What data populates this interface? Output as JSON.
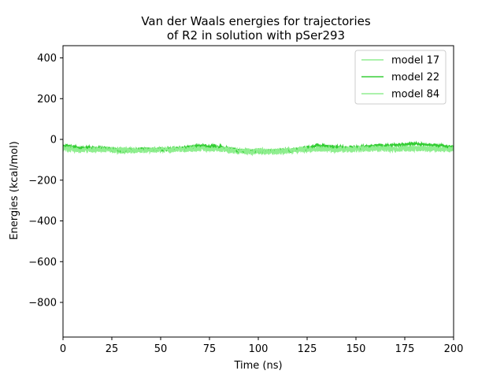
{
  "chart_data": {
    "type": "line",
    "title": [
      "Van der Waals energies for trajectories",
      "of R2 in solution with pSer293"
    ],
    "xlabel": "Time (ns)",
    "ylabel": "Energies (kcal/mol)",
    "xlim": [
      0,
      200
    ],
    "ylim": [
      -970,
      460
    ],
    "xticks": [
      0,
      25,
      50,
      75,
      100,
      125,
      150,
      175,
      200
    ],
    "xtick_labels": [
      "0",
      "25",
      "50",
      "75",
      "100",
      "125",
      "150",
      "175",
      "200"
    ],
    "yticks": [
      400,
      200,
      0,
      -200,
      -400,
      -600,
      -800
    ],
    "ytick_labels": [
      "400",
      "200",
      "0",
      "−200",
      "−400",
      "−600",
      "−800"
    ],
    "grid": false,
    "legend_position": "top-right",
    "series": [
      {
        "name": "model 17",
        "color": "#90ee90",
        "x": [
          0,
          10,
          20,
          30,
          40,
          50,
          60,
          70,
          80,
          90,
          100,
          110,
          120,
          130,
          140,
          150,
          160,
          170,
          180,
          190,
          200
        ],
        "y": [
          -38,
          -52,
          -50,
          -57,
          -52,
          -54,
          -50,
          -44,
          -46,
          -60,
          -62,
          -62,
          -52,
          -48,
          -50,
          -50,
          -46,
          -48,
          -45,
          -47,
          -49
        ]
      },
      {
        "name": "model 22",
        "color": "#32cd32",
        "x": [
          0,
          10,
          20,
          30,
          40,
          50,
          60,
          70,
          80,
          90,
          100,
          110,
          120,
          130,
          140,
          150,
          160,
          170,
          180,
          190,
          200
        ],
        "y": [
          -30,
          -42,
          -40,
          -55,
          -48,
          -50,
          -45,
          -30,
          -35,
          -55,
          -58,
          -55,
          -50,
          -30,
          -38,
          -40,
          -32,
          -28,
          -22,
          -28,
          -38
        ]
      },
      {
        "name": "model 84",
        "color": "#90ee90",
        "x": [
          0,
          10,
          20,
          30,
          40,
          50,
          60,
          70,
          80,
          90,
          100,
          110,
          120,
          130,
          140,
          150,
          160,
          170,
          180,
          190,
          200
        ],
        "y": [
          -45,
          -55,
          -48,
          -52,
          -55,
          -48,
          -50,
          -46,
          -48,
          -58,
          -56,
          -58,
          -50,
          -46,
          -48,
          -46,
          -44,
          -46,
          -44,
          -45,
          -48
        ]
      }
    ]
  }
}
